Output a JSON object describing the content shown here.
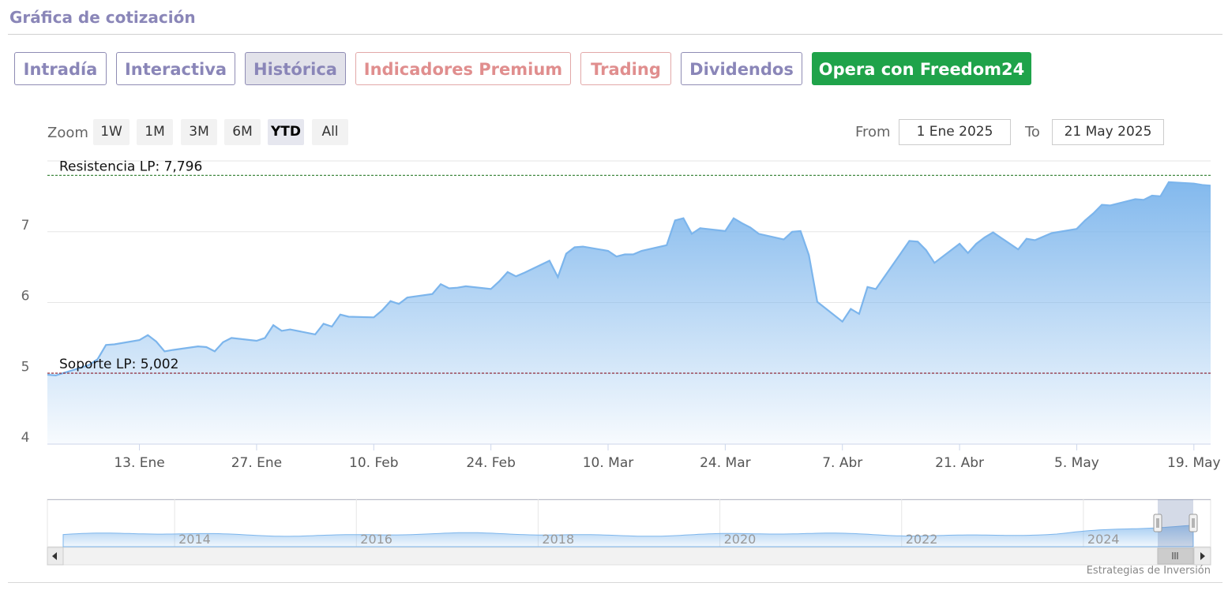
{
  "section_title": "Gráfica de cotización",
  "tabs": [
    {
      "label": "Intradía",
      "state": "normal"
    },
    {
      "label": "Interactiva",
      "state": "normal"
    },
    {
      "label": "Histórica",
      "state": "active"
    },
    {
      "label": "Indicadores Premium",
      "state": "premium"
    },
    {
      "label": "Trading",
      "state": "premium"
    },
    {
      "label": "Dividendos",
      "state": "normal"
    },
    {
      "label": "Opera con Freedom24",
      "state": "cta"
    }
  ],
  "zoom": {
    "label": "Zoom",
    "options": [
      "1W",
      "1M",
      "3M",
      "6M",
      "YTD",
      "All"
    ],
    "selected": "YTD"
  },
  "range": {
    "from_label": "From",
    "from_value": "1 Ene 2025",
    "to_label": "To",
    "to_value": "21 May 2025"
  },
  "credit": "Estrategias de Inversión",
  "colors": {
    "line": "#7cb5ec",
    "resistance": "#2a7a2a",
    "support": "#8b1a2a",
    "tab_text": "#8a86b8",
    "premium_text": "#e08e8e",
    "cta_bg": "#1fa34a"
  },
  "chart_data": {
    "type": "area",
    "x_start": "2025-01-02",
    "x_end": "2025-05-21",
    "ylim": [
      4,
      8
    ],
    "yticks": [
      "4",
      "5",
      "6",
      "7"
    ],
    "xticks": [
      {
        "date": "2025-01-13",
        "label": "13. Ene"
      },
      {
        "date": "2025-01-27",
        "label": "27. Ene"
      },
      {
        "date": "2025-02-10",
        "label": "10. Feb"
      },
      {
        "date": "2025-02-24",
        "label": "24. Feb"
      },
      {
        "date": "2025-03-10",
        "label": "10. Mar"
      },
      {
        "date": "2025-03-24",
        "label": "24. Mar"
      },
      {
        "date": "2025-04-07",
        "label": "7. Abr"
      },
      {
        "date": "2025-04-21",
        "label": "21. Abr"
      },
      {
        "date": "2025-05-05",
        "label": "5. May"
      },
      {
        "date": "2025-05-19",
        "label": "19. May"
      }
    ],
    "series": [
      {
        "dates": [
          "2025-01-02",
          "2025-01-03",
          "2025-01-06",
          "2025-01-07",
          "2025-01-08",
          "2025-01-09",
          "2025-01-10",
          "2025-01-13",
          "2025-01-14",
          "2025-01-15",
          "2025-01-16",
          "2025-01-17",
          "2025-01-20",
          "2025-01-21",
          "2025-01-22",
          "2025-01-23",
          "2025-01-24",
          "2025-01-27",
          "2025-01-28",
          "2025-01-29",
          "2025-01-30",
          "2025-01-31",
          "2025-02-03",
          "2025-02-04",
          "2025-02-05",
          "2025-02-06",
          "2025-02-07",
          "2025-02-10",
          "2025-02-11",
          "2025-02-12",
          "2025-02-13",
          "2025-02-14",
          "2025-02-17",
          "2025-02-18",
          "2025-02-19",
          "2025-02-20",
          "2025-02-21",
          "2025-02-24",
          "2025-02-25",
          "2025-02-26",
          "2025-02-27",
          "2025-02-28",
          "2025-03-03",
          "2025-03-04",
          "2025-03-05",
          "2025-03-06",
          "2025-03-07",
          "2025-03-10",
          "2025-03-11",
          "2025-03-12",
          "2025-03-13",
          "2025-03-14",
          "2025-03-17",
          "2025-03-18",
          "2025-03-19",
          "2025-03-20",
          "2025-03-21",
          "2025-03-24",
          "2025-03-25",
          "2025-03-26",
          "2025-03-27",
          "2025-03-28",
          "2025-03-31",
          "2025-04-01",
          "2025-04-02",
          "2025-04-03",
          "2025-04-04",
          "2025-04-07",
          "2025-04-08",
          "2025-04-09",
          "2025-04-10",
          "2025-04-11",
          "2025-04-14",
          "2025-04-15",
          "2025-04-16",
          "2025-04-17",
          "2025-04-18",
          "2025-04-21",
          "2025-04-22",
          "2025-04-23",
          "2025-04-24",
          "2025-04-25",
          "2025-04-28",
          "2025-04-29",
          "2025-04-30",
          "2025-05-02",
          "2025-05-05",
          "2025-05-06",
          "2025-05-07",
          "2025-05-08",
          "2025-05-09",
          "2025-05-12",
          "2025-05-13",
          "2025-05-14",
          "2025-05-15",
          "2025-05-16",
          "2025-05-19",
          "2025-05-20",
          "2025-05-21"
        ],
        "values": [
          4.98,
          4.97,
          5.08,
          5.12,
          5.2,
          5.4,
          5.41,
          5.47,
          5.54,
          5.45,
          5.31,
          5.33,
          5.38,
          5.37,
          5.31,
          5.44,
          5.5,
          5.46,
          5.5,
          5.68,
          5.6,
          5.62,
          5.55,
          5.7,
          5.66,
          5.83,
          5.8,
          5.79,
          5.89,
          6.02,
          5.98,
          6.07,
          6.12,
          6.26,
          6.2,
          6.21,
          6.23,
          6.19,
          6.3,
          6.43,
          6.37,
          6.42,
          6.59,
          6.36,
          6.69,
          6.78,
          6.79,
          6.73,
          6.65,
          6.68,
          6.68,
          6.73,
          6.81,
          7.16,
          7.19,
          6.97,
          7.05,
          7.01,
          7.19,
          7.12,
          7.06,
          6.97,
          6.89,
          7.0,
          7.01,
          6.67,
          6.01,
          5.73,
          5.91,
          5.84,
          6.22,
          6.19,
          6.7,
          6.87,
          6.86,
          6.74,
          6.56,
          6.83,
          6.7,
          6.83,
          6.92,
          6.99,
          6.75,
          6.9,
          6.88,
          6.98,
          7.04,
          7.16,
          7.26,
          7.38,
          7.37,
          7.46,
          7.45,
          7.51,
          7.5,
          7.7,
          7.68,
          7.66,
          7.65
        ]
      }
    ],
    "annotations": [
      {
        "label": "Resistencia LP: 7,796",
        "value": 7.796
      },
      {
        "label": "Soporte LP: 5,002",
        "value": 5.002
      }
    ],
    "navigator": {
      "year_labels": [
        "2014",
        "2016",
        "2018",
        "2020",
        "2022",
        "2024"
      ]
    }
  }
}
